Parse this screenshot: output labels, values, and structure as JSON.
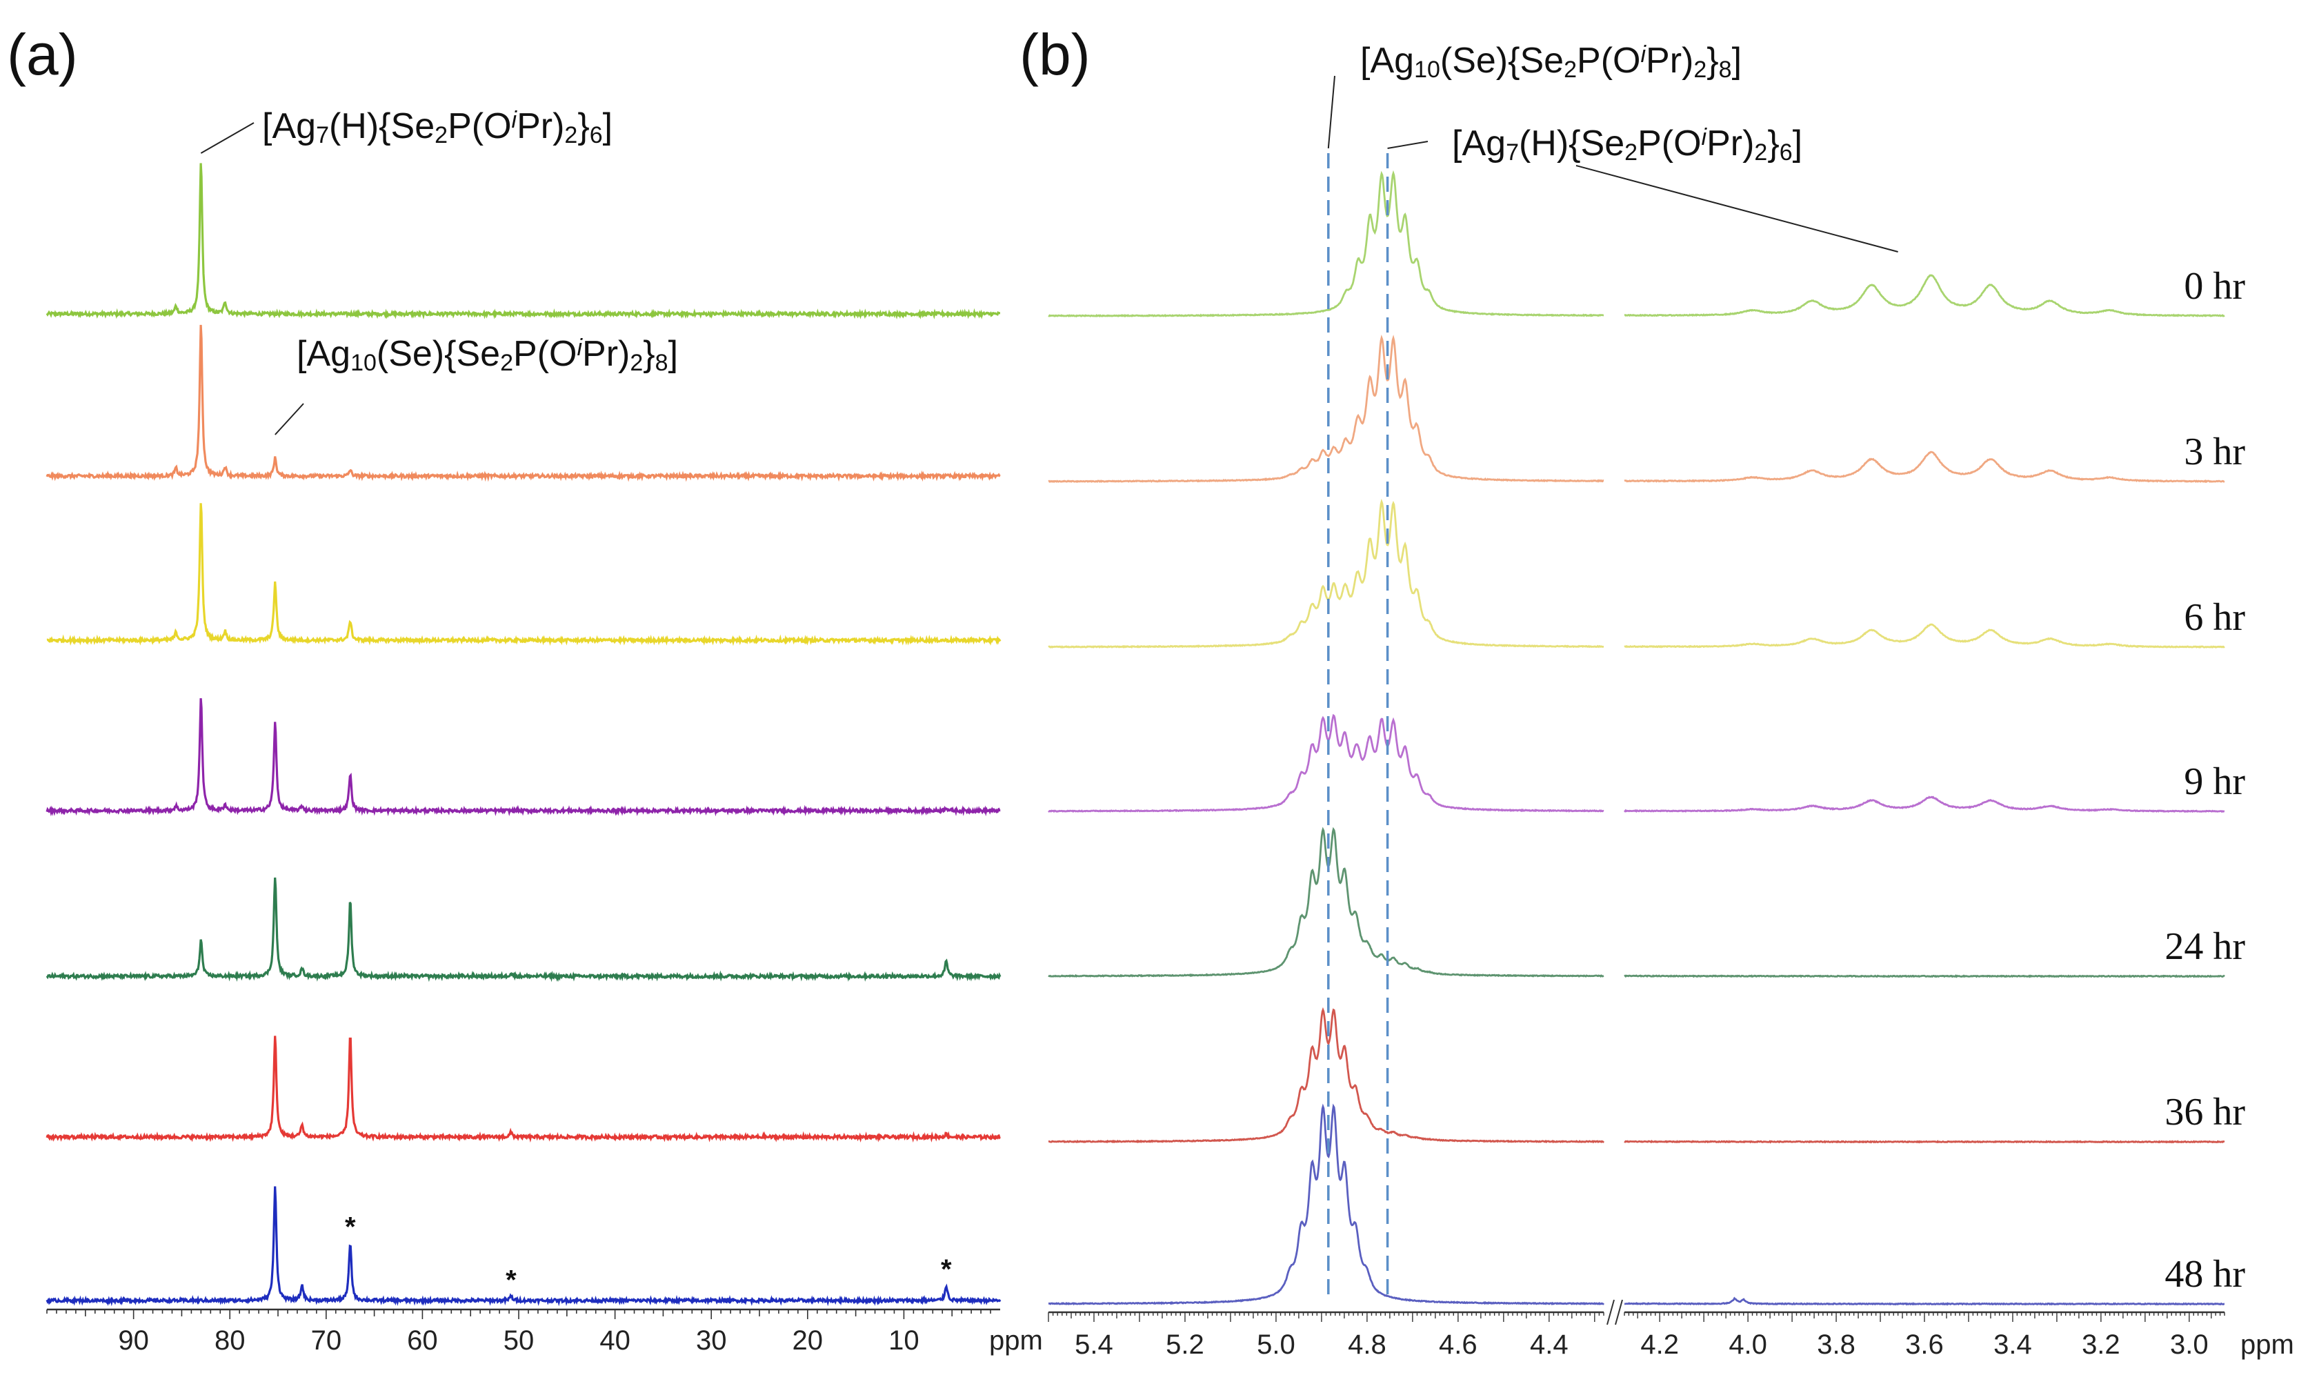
{
  "figure": {
    "panel_a_label": "(a)",
    "panel_b_label": "(b)"
  },
  "chart_data": [
    {
      "type": "line",
      "panel": "a",
      "title": "",
      "xlabel": "ppm",
      "xlim": [
        99,
        0
      ],
      "xticks": [
        90,
        80,
        70,
        60,
        50,
        40,
        30,
        20,
        10
      ],
      "grid": false,
      "annotations": [
        {
          "id": "ag7",
          "parts": [
            "[Ag",
            "7",
            "(H){Se",
            "2",
            "P(O",
            "i",
            "Pr)",
            "2",
            "}",
            "6",
            "]"
          ],
          "shifts": [
            "",
            "sub",
            "",
            "sub",
            "",
            "sup",
            "",
            "sub",
            "",
            "sub",
            ""
          ],
          "at_ppm": 83.0
        },
        {
          "id": "ag10",
          "parts": [
            "[Ag",
            "10",
            "(Se){Se",
            "2",
            "P(O",
            "i",
            "Pr)",
            "2",
            "}",
            "8",
            "]"
          ],
          "shifts": [
            "",
            "sub",
            "",
            "sub",
            "",
            "sup",
            "",
            "sub",
            "",
            "sub",
            ""
          ],
          "at_ppm": 75.3
        }
      ],
      "impurity_marks": [
        {
          "label": "*",
          "ppm": 67.5
        },
        {
          "label": "*",
          "ppm": 50.8
        },
        {
          "label": "*",
          "ppm": 5.6
        }
      ],
      "series": [
        {
          "name": "0 hr",
          "color": "#8DC63F",
          "peaks": [
            [
              85.6,
              0.05
            ],
            [
              83.0,
              1.0
            ],
            [
              80.5,
              0.08
            ]
          ]
        },
        {
          "name": "3 hr",
          "color": "#F08A5D",
          "peaks": [
            [
              85.6,
              0.05
            ],
            [
              83.0,
              1.0
            ],
            [
              80.5,
              0.06
            ],
            [
              75.3,
              0.12
            ],
            [
              67.5,
              0.04
            ]
          ]
        },
        {
          "name": "6 hr",
          "color": "#E8D62A",
          "peaks": [
            [
              85.6,
              0.05
            ],
            [
              83.0,
              0.92
            ],
            [
              80.5,
              0.06
            ],
            [
              75.3,
              0.38
            ],
            [
              67.5,
              0.13
            ]
          ]
        },
        {
          "name": "9 hr",
          "color": "#8E24AA",
          "peaks": [
            [
              85.6,
              0.03
            ],
            [
              83.0,
              0.74
            ],
            [
              80.5,
              0.04
            ],
            [
              75.3,
              0.58
            ],
            [
              72.5,
              0.03
            ],
            [
              67.5,
              0.24
            ],
            [
              5.6,
              0.02
            ]
          ]
        },
        {
          "name": "24 hr",
          "color": "#2E7D4F",
          "peaks": [
            [
              83.0,
              0.24
            ],
            [
              75.3,
              0.66
            ],
            [
              72.5,
              0.05
            ],
            [
              67.5,
              0.5
            ],
            [
              50.8,
              0.02
            ],
            [
              5.6,
              0.1
            ]
          ]
        },
        {
          "name": "36 hr",
          "color": "#E53935",
          "peaks": [
            [
              75.3,
              0.66
            ],
            [
              72.5,
              0.08
            ],
            [
              67.5,
              0.68
            ],
            [
              50.8,
              0.03
            ],
            [
              5.6,
              0.02
            ]
          ]
        },
        {
          "name": "48 hr",
          "color": "#1E2DBE",
          "peaks": [
            [
              75.3,
              0.75
            ],
            [
              72.5,
              0.1
            ],
            [
              67.5,
              0.38
            ],
            [
              50.8,
              0.03
            ],
            [
              5.6,
              0.1
            ]
          ]
        }
      ]
    },
    {
      "type": "line",
      "panel": "b",
      "title": "",
      "xlabel": "ppm",
      "x_segments": [
        [
          5.5,
          4.28
        ],
        [
          4.28,
          2.92
        ]
      ],
      "axis_break": true,
      "xticks": [
        5.4,
        5.2,
        5.0,
        4.8,
        4.6,
        4.4,
        4.2,
        4.0,
        3.8,
        3.6,
        3.4,
        3.2,
        3.0
      ],
      "dashed_markers_ppm": [
        4.885,
        4.755
      ],
      "grid": false,
      "annotations": [
        {
          "id": "ag10",
          "parts": [
            "[Ag",
            "10",
            "(Se){Se",
            "2",
            "P(O",
            "i",
            "Pr)",
            "2",
            "}",
            "8",
            "]"
          ],
          "shifts": [
            "",
            "sub",
            "",
            "sub",
            "",
            "sup",
            "",
            "sub",
            "",
            "sub",
            ""
          ],
          "at_ppm": 4.885
        },
        {
          "id": "ag7",
          "parts": [
            "[Ag",
            "7",
            "(H){Se",
            "2",
            "P(O",
            "i",
            "Pr)",
            "2",
            "}",
            "6",
            "]"
          ],
          "shifts": [
            "",
            "sub",
            "",
            "sub",
            "",
            "sup",
            "",
            "sub",
            "",
            "sub",
            ""
          ],
          "at_ppm": 4.755,
          "septet_at_ppm": 3.66
        }
      ],
      "series": [
        {
          "name": "0 hr",
          "label": "0 hr",
          "color": "#A8D46F",
          "ag7_scale": 1.0,
          "ag10_scale": 0.0,
          "hydride_scale": 1.0,
          "extra_peak": 0.0
        },
        {
          "name": "3 hr",
          "label": "3 hr",
          "color": "#F0A882",
          "ag7_scale": 1.0,
          "ag10_scale": 0.18,
          "hydride_scale": 0.72,
          "extra_peak": 0.0
        },
        {
          "name": "6 hr",
          "label": "6 hr",
          "color": "#E6E07A",
          "ag7_scale": 1.0,
          "ag10_scale": 0.38,
          "hydride_scale": 0.55,
          "extra_peak": 0.0
        },
        {
          "name": "9 hr",
          "label": "9 hr",
          "color": "#B96FD0",
          "ag7_scale": 0.62,
          "ag10_scale": 0.62,
          "hydride_scale": 0.35,
          "extra_peak": 0.0
        },
        {
          "name": "24 hr",
          "label": "24 hr",
          "color": "#5E9470",
          "ag7_scale": 0.1,
          "ag10_scale": 1.0,
          "hydride_scale": 0.0,
          "extra_peak": 0.0
        },
        {
          "name": "36 hr",
          "label": "36 hr",
          "color": "#D2574E",
          "ag7_scale": 0.04,
          "ag10_scale": 0.9,
          "hydride_scale": 0.0,
          "extra_peak": 0.0
        },
        {
          "name": "48 hr",
          "label": "48 hr",
          "color": "#5A5FC0",
          "ag7_scale": 0.0,
          "ag10_scale": 1.35,
          "hydride_scale": 0.0,
          "extra_peak": 0.08
        }
      ]
    }
  ]
}
